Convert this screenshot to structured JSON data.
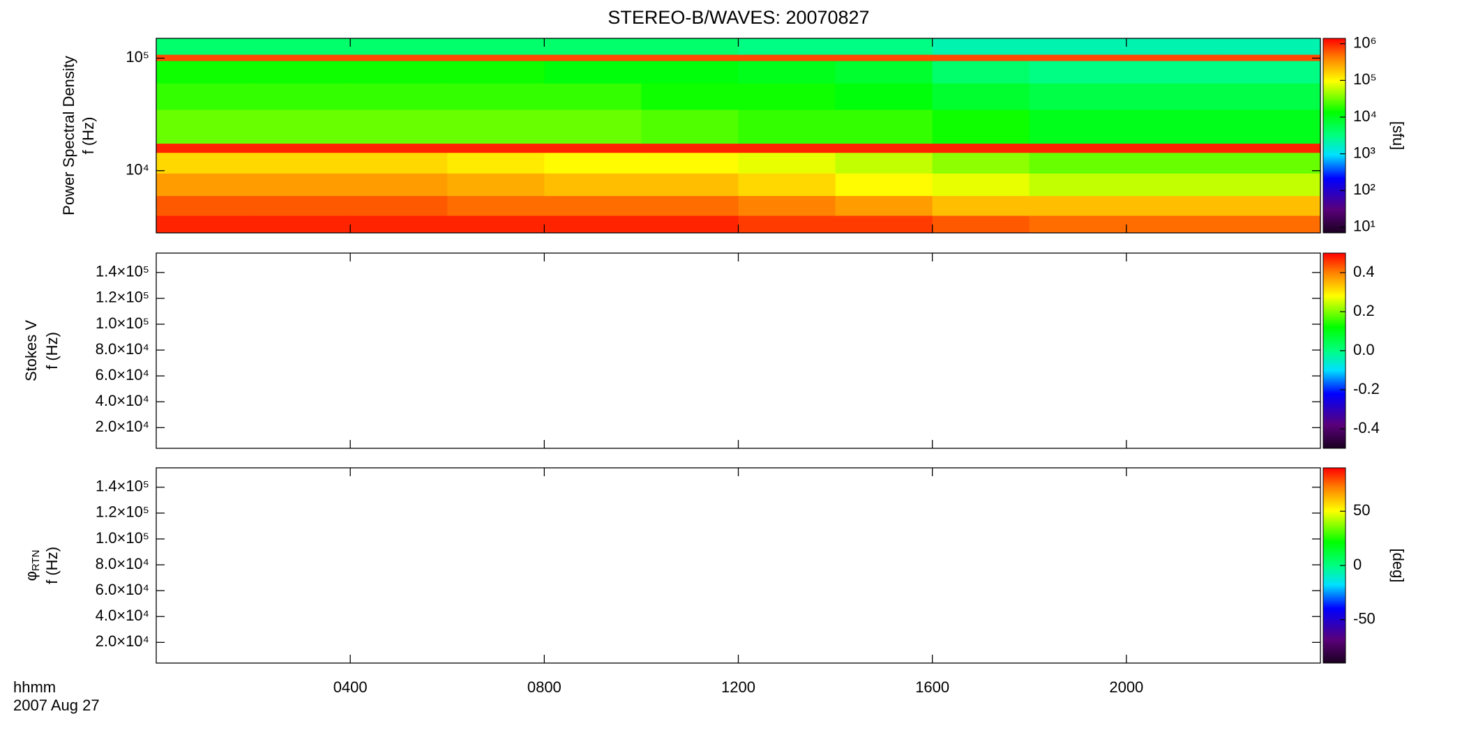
{
  "chart_data": [
    {
      "type": "heatmap",
      "title": "STEREO-B/WAVES: 20070827",
      "ylabel": [
        "Power Spectral Density",
        "f (Hz)"
      ],
      "ylog": true,
      "ylim": [
        2800,
        150000
      ],
      "yticks": [
        {
          "value": 10000,
          "label": "10⁴"
        },
        {
          "value": 100000,
          "label": "10⁵"
        }
      ],
      "xlim": [
        0,
        24
      ],
      "x_edges": [
        0,
        2,
        4,
        6,
        8,
        10,
        12,
        14,
        16,
        18,
        20,
        22,
        24
      ],
      "y_edges": [
        2800,
        4000,
        6000,
        9500,
        14500,
        17500,
        35000,
        60000,
        95000,
        108000,
        150000
      ],
      "z": [
        [
          1000000,
          1000000,
          1000000,
          1000000,
          1000000,
          1000000,
          800000,
          800000,
          600000,
          500000,
          500000,
          500000
        ],
        [
          600000,
          600000,
          600000,
          500000,
          500000,
          500000,
          400000,
          300000,
          200000,
          200000,
          200000,
          200000
        ],
        [
          300000,
          300000,
          300000,
          250000,
          200000,
          200000,
          150000,
          100000,
          80000,
          60000,
          60000,
          60000
        ],
        [
          150000,
          150000,
          150000,
          120000,
          100000,
          100000,
          80000,
          60000,
          40000,
          30000,
          30000,
          30000
        ],
        [
          1000000,
          1000000,
          1000000,
          1000000,
          1000000,
          1000000,
          1000000,
          1000000,
          1000000,
          1000000,
          1000000,
          1000000
        ],
        [
          30000,
          30000,
          30000,
          30000,
          30000,
          25000,
          20000,
          20000,
          15000,
          10000,
          10000,
          10000
        ],
        [
          20000,
          20000,
          20000,
          20000,
          20000,
          15000,
          15000,
          12000,
          8000,
          6000,
          6000,
          6000
        ],
        [
          15000,
          15000,
          15000,
          15000,
          12000,
          12000,
          10000,
          8000,
          4000,
          3000,
          3000,
          3000
        ],
        [
          700000,
          700000,
          700000,
          700000,
          700000,
          700000,
          700000,
          700000,
          700000,
          700000,
          700000,
          700000
        ],
        [
          4000,
          4000,
          4000,
          4000,
          4000,
          4000,
          3000,
          3000,
          2000,
          2000,
          2000,
          2000
        ]
      ],
      "clog": true,
      "clim": [
        7,
        1400000
      ],
      "cticks": [
        {
          "value": 10,
          "label": "10¹"
        },
        {
          "value": 100,
          "label": "10²"
        },
        {
          "value": 1000,
          "label": "10³"
        },
        {
          "value": 10000,
          "label": "10⁴"
        },
        {
          "value": 100000,
          "label": "10⁵"
        },
        {
          "value": 1000000,
          "label": "10⁶"
        }
      ],
      "clabel": "[sfu]"
    },
    {
      "type": "heatmap",
      "ylabel": [
        "Stokes V",
        "f (Hz)"
      ],
      "ylog": false,
      "ylim": [
        4000,
        155000
      ],
      "yticks": [
        {
          "value": 20000,
          "label": "2.0×10⁴"
        },
        {
          "value": 40000,
          "label": "4.0×10⁴"
        },
        {
          "value": 60000,
          "label": "6.0×10⁴"
        },
        {
          "value": 80000,
          "label": "8.0×10⁴"
        },
        {
          "value": 100000,
          "label": "1.0×10⁵"
        },
        {
          "value": 120000,
          "label": "1.2×10⁵"
        },
        {
          "value": 140000,
          "label": "1.4×10⁵"
        }
      ],
      "xlim": [
        0,
        24
      ],
      "clog": false,
      "clim": [
        -0.5,
        0.5
      ],
      "cticks": [
        -0.4,
        -0.2,
        {
          "value": 0,
          "label": "0.0"
        },
        0.2,
        0.4
      ]
    },
    {
      "type": "heatmap",
      "ylabel": [
        "φ",
        "f (Hz)"
      ],
      "ylabel_sub": "RTN",
      "ylog": false,
      "ylim": [
        4000,
        155000
      ],
      "yticks": [
        {
          "value": 20000,
          "label": "2.0×10⁴"
        },
        {
          "value": 40000,
          "label": "4.0×10⁴"
        },
        {
          "value": 60000,
          "label": "6.0×10⁴"
        },
        {
          "value": 80000,
          "label": "8.0×10⁴"
        },
        {
          "value": 100000,
          "label": "1.0×10⁵"
        },
        {
          "value": 120000,
          "label": "1.2×10⁵"
        },
        {
          "value": 140000,
          "label": "1.4×10⁵"
        }
      ],
      "xlim": [
        0,
        24
      ],
      "xticks": [
        {
          "value": 4,
          "label": "0400"
        },
        {
          "value": 8,
          "label": "0800"
        },
        {
          "value": 12,
          "label": "1200"
        },
        {
          "value": 16,
          "label": "1600"
        },
        {
          "value": 20,
          "label": "2000"
        }
      ],
      "xaxis_title": [
        "hhmm",
        "2007 Aug 27"
      ],
      "clog": false,
      "clim": [
        -90,
        90
      ],
      "cticks": [
        -50,
        0,
        50
      ],
      "clabel": "[deg]"
    }
  ]
}
